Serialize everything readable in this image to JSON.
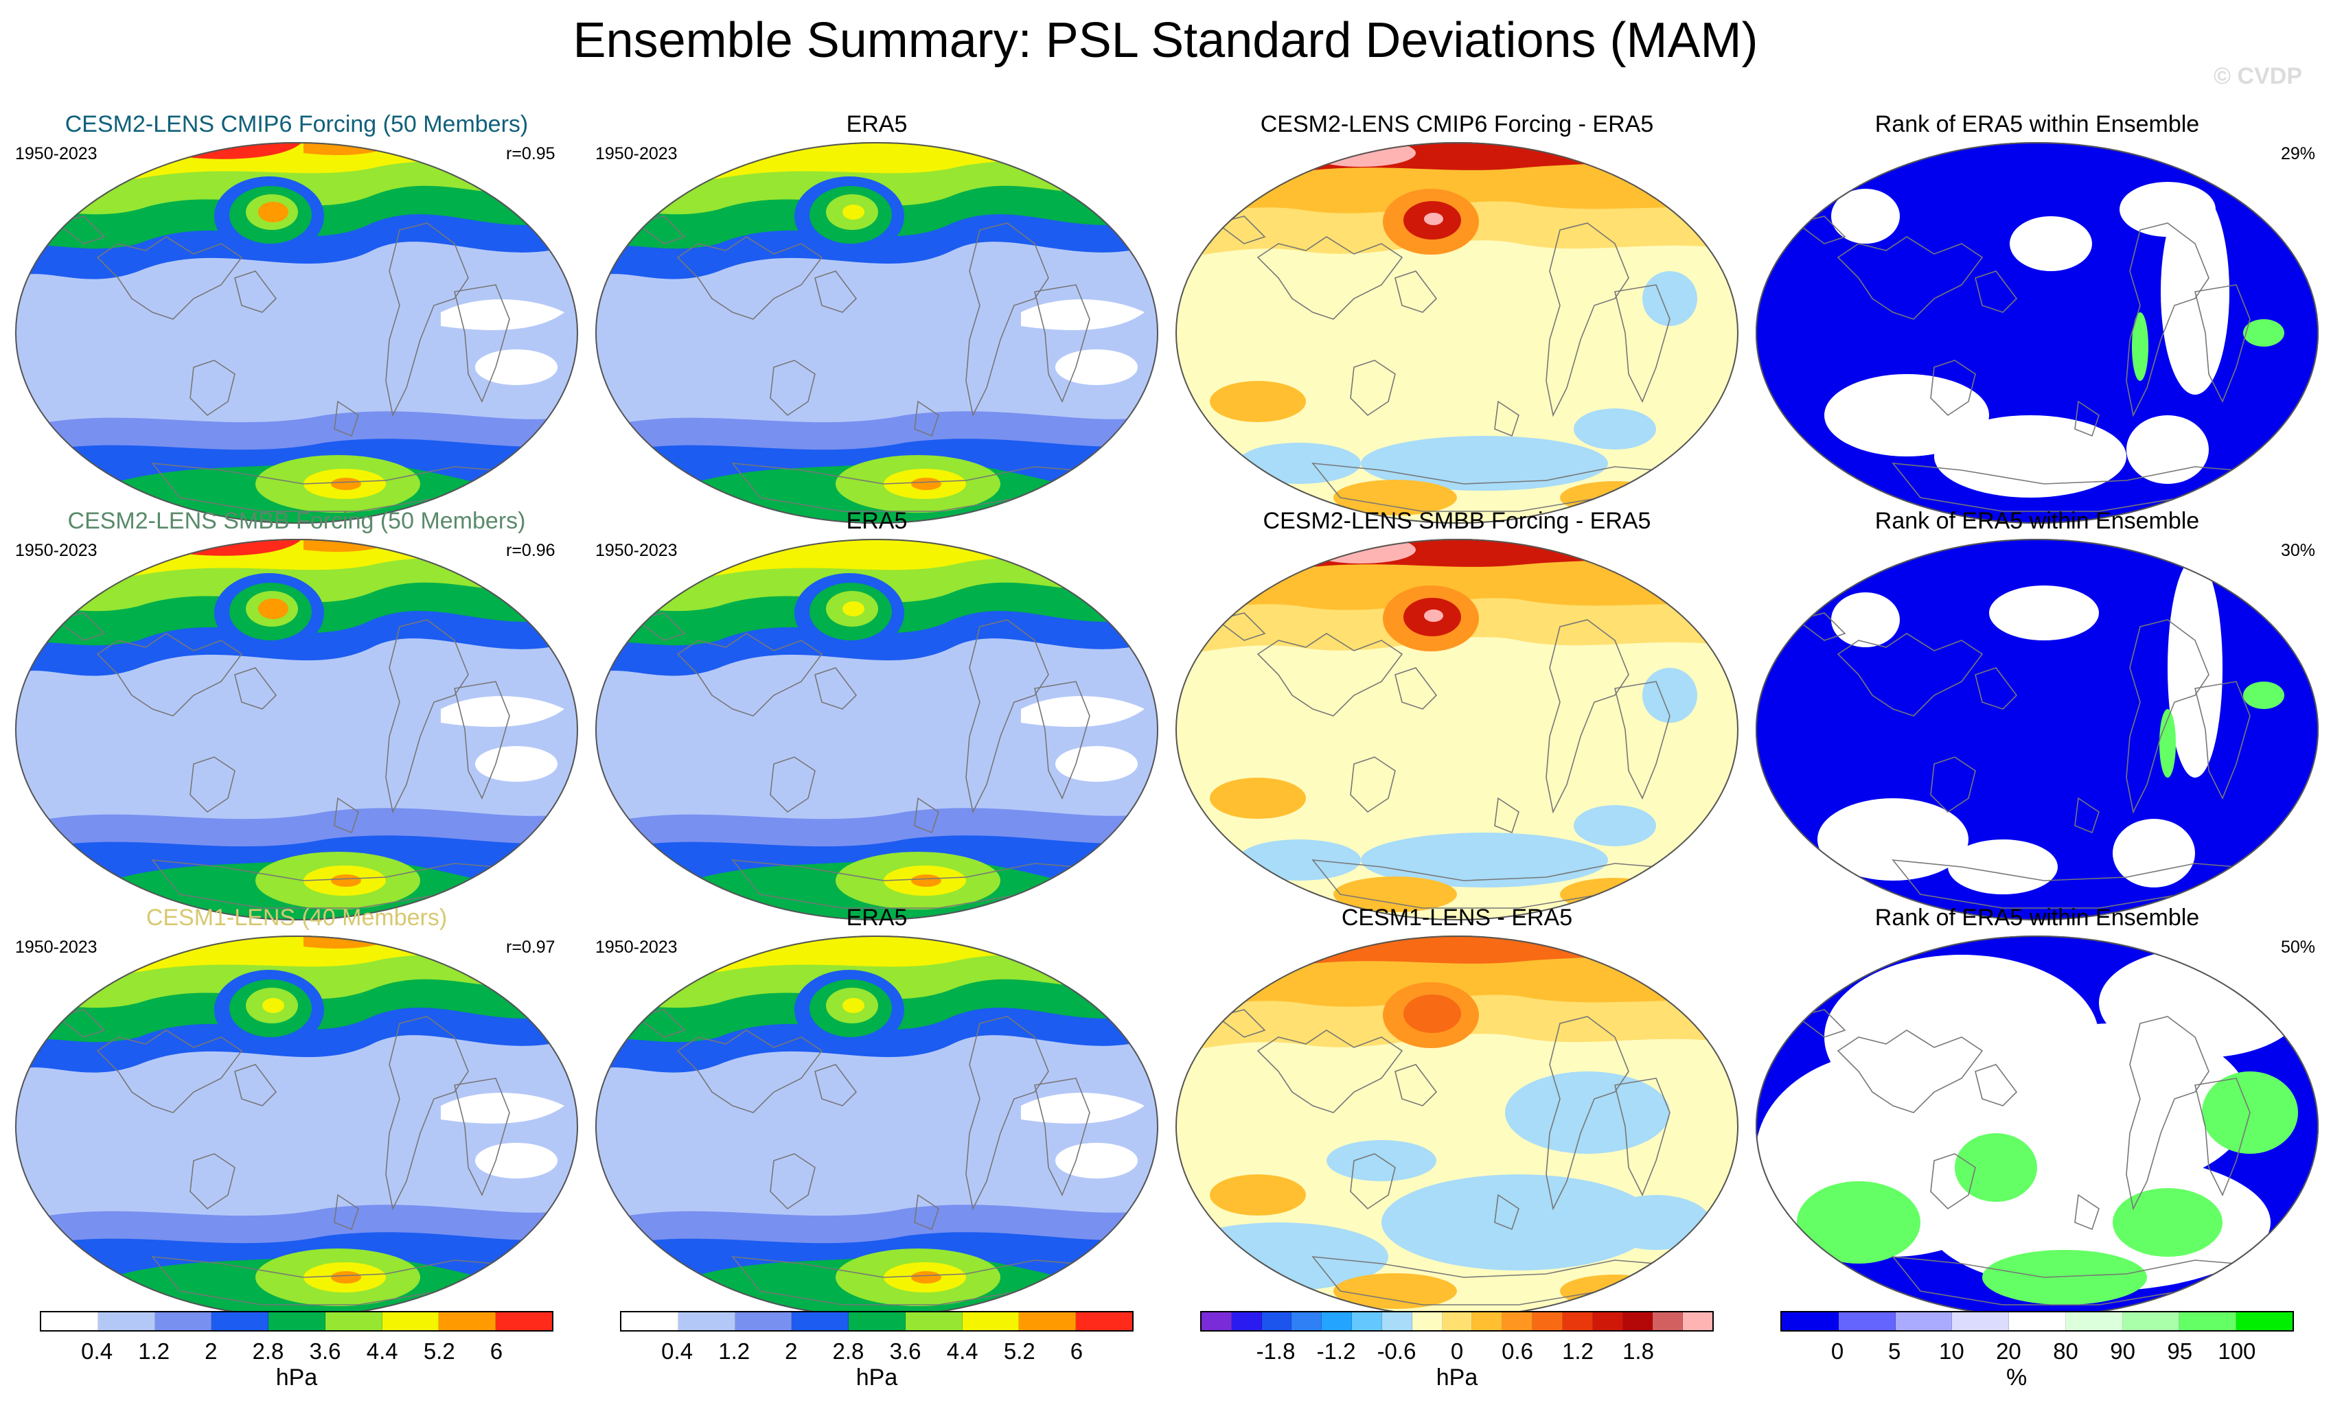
{
  "title": "Ensemble Summary: PSL Standard Deviations (MAM)",
  "copyright": "© CVDP",
  "colors": {
    "std": [
      "#ffffff",
      "#b4c8f8",
      "#7890f0",
      "#1c5cf0",
      "#00b04a",
      "#96e632",
      "#f5f500",
      "#ff9a00",
      "#ff2a1a"
    ],
    "diff": [
      "#7a2cd8",
      "#2a1cf0",
      "#1c54ee",
      "#2e80f4",
      "#22a4ff",
      "#64c8ff",
      "#a8dcf8",
      "#fffcc0",
      "#ffe070",
      "#ffbf30",
      "#ff9620",
      "#f86a14",
      "#e8380c",
      "#d01808",
      "#b40808",
      "#d26060",
      "#ffb4b4"
    ],
    "rank": [
      "#0000ee",
      "#6464ff",
      "#aaaaff",
      "#dcdcff",
      "#ffffff",
      "#dcffdc",
      "#aaffaa",
      "#64ff64",
      "#00ee00"
    ]
  },
  "rows": [
    {
      "model": {
        "title": "CESM2-LENS CMIP6 Forcing (50 Members)",
        "title_color": "#10607a",
        "years": "1950-2023",
        "r": "r=0.95"
      },
      "obs": {
        "title": "ERA5",
        "years": "1950-2023"
      },
      "diff": {
        "title": "CESM2-LENS CMIP6 Forcing - ERA5"
      },
      "rank": {
        "title": "Rank of ERA5 within Ensemble",
        "pct": "29%"
      }
    },
    {
      "model": {
        "title": "CESM2-LENS SMBB Forcing (50 Members)",
        "title_color": "#5a8a6a",
        "years": "1950-2023",
        "r": "r=0.96"
      },
      "obs": {
        "title": "ERA5",
        "years": "1950-2023"
      },
      "diff": {
        "title": "CESM2-LENS SMBB Forcing - ERA5"
      },
      "rank": {
        "title": "Rank of ERA5 within Ensemble",
        "pct": "30%"
      }
    },
    {
      "model": {
        "title": "CESM1-LENS (40 Members)",
        "title_color": "#d8c870",
        "years": "1950-2023",
        "r": "r=0.97"
      },
      "obs": {
        "title": "ERA5",
        "years": "1950-2023"
      },
      "diff": {
        "title": "CESM1-LENS - ERA5"
      },
      "rank": {
        "title": "Rank of ERA5 within Ensemble",
        "pct": "50%"
      }
    }
  ],
  "colorbars": [
    {
      "labels": [
        "0.4",
        "1.2",
        "2",
        "2.8",
        "3.6",
        "4.4",
        "5.2",
        "6"
      ],
      "unit": "hPa"
    },
    {
      "labels": [
        "0.4",
        "1.2",
        "2",
        "2.8",
        "3.6",
        "4.4",
        "5.2",
        "6"
      ],
      "unit": "hPa"
    },
    {
      "labels": [
        "-1.8",
        "-1.2",
        "-0.6",
        "0",
        "0.6",
        "1.2",
        "1.8"
      ],
      "unit": "hPa"
    },
    {
      "labels": [
        "0",
        "5",
        "10",
        "20",
        "80",
        "90",
        "95",
        "100"
      ],
      "unit": "%"
    }
  ]
}
